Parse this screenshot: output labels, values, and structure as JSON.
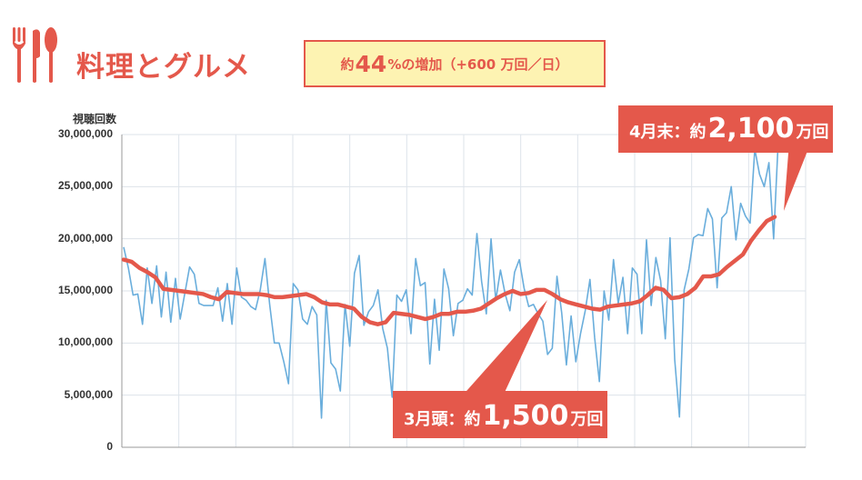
{
  "header": {
    "title": "料理とグルメ",
    "badge": {
      "prefix": "約",
      "value": "44",
      "suffix": "%の増加（+600 万回／日）"
    }
  },
  "colors": {
    "accent": "#e4584b",
    "daily": "#6aaedc",
    "trend": "#e4584b",
    "badge_bg": "#fdf3b2",
    "grid": "#dde3ea"
  },
  "icons": {
    "logo": "fork-knife-spoon-icon"
  },
  "chart_data": {
    "type": "line",
    "ylabel": "視聴回数",
    "ylim": [
      0,
      30000000
    ],
    "yticks": [
      "0",
      "5,000,000",
      "10,000,000",
      "15,000,000",
      "20,000,000",
      "25,000,000",
      "30,000,000"
    ],
    "grid": true,
    "series": [
      {
        "values": [
          19200000,
          17200000,
          14600000,
          14700000,
          11800000,
          17200000,
          13800000,
          17400000,
          12500000,
          16800000,
          12000000,
          16200000,
          12300000,
          14800000,
          17300000,
          16600000,
          13800000,
          13600000,
          13600000,
          13600000,
          15300000,
          12100000,
          15700000,
          11800000,
          17200000,
          14400000,
          14100000,
          13500000,
          13200000,
          15100000,
          18100000,
          13700000,
          10000000,
          10000000,
          8200000,
          6100000,
          15700000,
          15100000,
          12300000,
          11800000,
          13500000,
          12700000,
          2800000,
          14100000,
          8100000,
          7500000,
          5400000,
          13700000,
          9700000,
          16700000,
          18400000,
          11700000,
          13000000,
          13600000,
          15100000,
          11400000,
          9500000,
          4800000,
          14600000,
          14000000,
          15100000,
          10900000,
          18100000,
          15500000,
          15800000,
          8000000,
          14200000,
          9300000,
          17100000,
          15200000,
          10700000,
          13800000,
          14100000,
          15200000,
          14600000,
          20500000,
          15900000,
          12800000,
          20000000,
          14100000,
          17000000,
          14700000,
          13100000,
          16800000,
          18000000,
          15300000,
          13500000,
          13700000,
          12800000,
          12100000,
          8900000,
          9500000,
          16400000,
          12900000,
          7900000,
          12600000,
          8200000,
          10900000,
          13100000,
          16100000,
          10500000,
          6300000,
          15000000,
          12200000,
          18000000,
          13800000,
          16300000,
          10900000,
          17200000,
          16600000,
          10900000,
          19900000,
          13600000,
          18200000,
          16000000,
          10400000,
          20100000,
          8400000,
          2900000,
          15100000,
          17100000,
          20100000,
          20400000,
          20300000,
          22900000,
          21900000,
          15300000,
          22000000,
          22500000,
          25000000,
          19900000,
          23400000,
          22200000,
          21500000,
          28600000,
          26200000,
          25000000,
          27300000,
          20000000,
          29600000
        ]
      },
      {
        "values": [
          18000000,
          17800000,
          17200000,
          16800000,
          16300000,
          15200000,
          15100000,
          15000000,
          14900000,
          14800000,
          14700000,
          14400000,
          14200000,
          14900000,
          14800000,
          14700000,
          14700000,
          14700000,
          14600000,
          14400000,
          14400000,
          14500000,
          14600000,
          14700000,
          14400000,
          13900000,
          13700000,
          13700000,
          13500000,
          13300000,
          12500000,
          12000000,
          11800000,
          12000000,
          12900000,
          12800000,
          12700000,
          12500000,
          12300000,
          12500000,
          12800000,
          12800000,
          13000000,
          13000000,
          13100000,
          13300000,
          13800000,
          14300000,
          14700000,
          15000000,
          14700000,
          14800000,
          15100000,
          15100000,
          14700000,
          14200000,
          13900000,
          13700000,
          13500000,
          13300000,
          13200000,
          13500000,
          13600000,
          13700000,
          13800000,
          14000000,
          14600000,
          15300000,
          15100000,
          14300000,
          14400000,
          14700000,
          15300000,
          16400000,
          16400000,
          16600000,
          17300000,
          17900000,
          18500000,
          19800000,
          20800000,
          21700000,
          22100000
        ]
      }
    ],
    "annotations": [
      {
        "prefix": "3月頭：約",
        "value": "1,500",
        "suffix": "万回"
      },
      {
        "prefix": "4月末：約",
        "value": "2,100",
        "suffix": "万回"
      }
    ]
  }
}
